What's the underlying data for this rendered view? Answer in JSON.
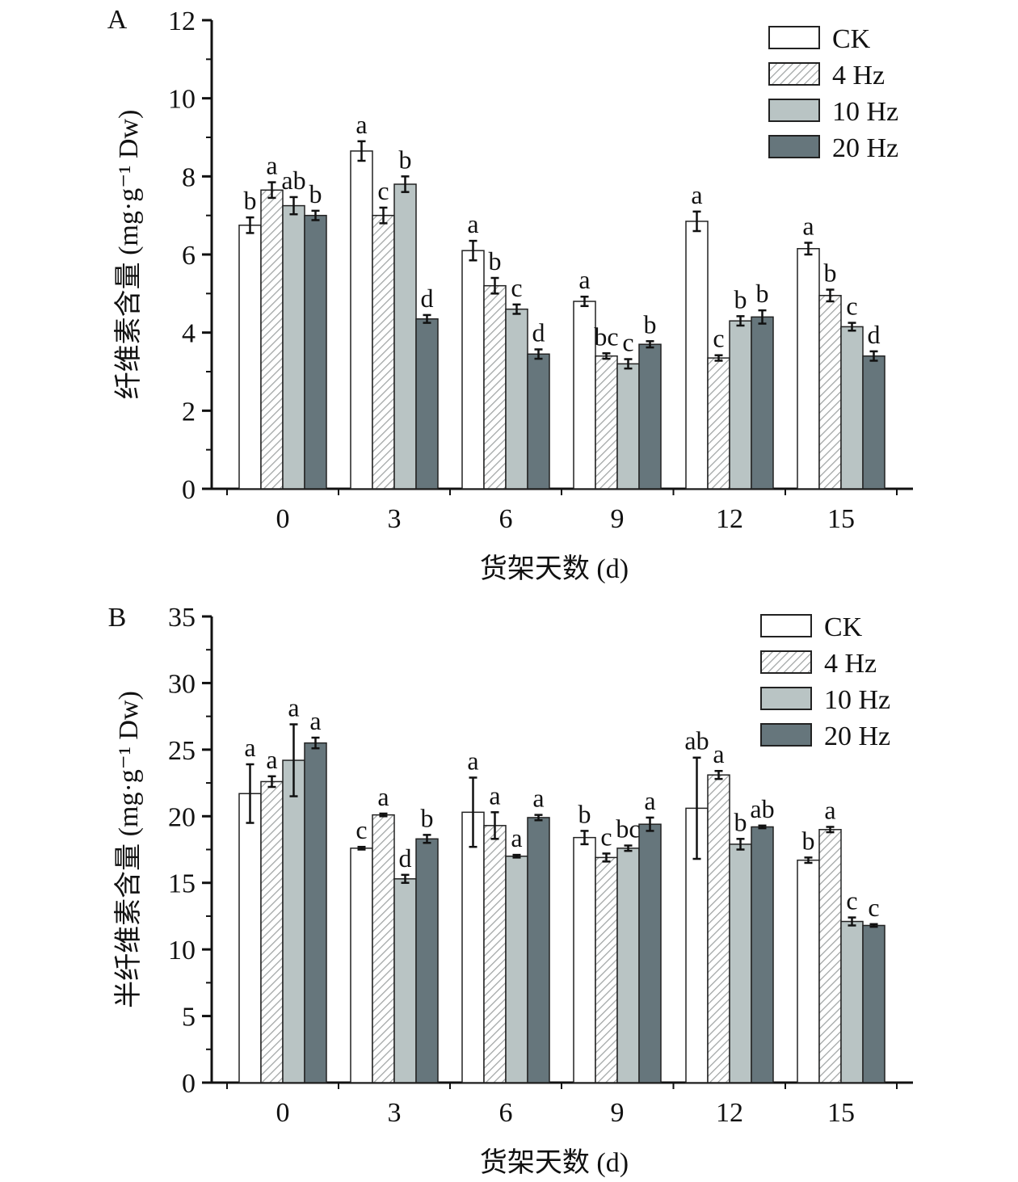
{
  "chart_data": [
    {
      "type": "bar",
      "panel": "A",
      "ylabel": "纤维素含量 (mg·g⁻¹ Dw)",
      "xlabel": "货架天数 (d)",
      "ylim": [
        0,
        12
      ],
      "yticks": [
        0,
        2,
        4,
        6,
        8,
        10,
        12
      ],
      "categories": [
        "0",
        "3",
        "6",
        "9",
        "12",
        "15"
      ],
      "legend_position": "top-right",
      "series": [
        {
          "name": "CK",
          "values": [
            6.75,
            8.65,
            6.1,
            4.8,
            6.85,
            6.15
          ],
          "errors": [
            0.2,
            0.25,
            0.25,
            0.12,
            0.25,
            0.15
          ],
          "letters": [
            "b",
            "a",
            "a",
            "a",
            "a",
            "a"
          ]
        },
        {
          "name": "4 Hz",
          "values": [
            7.65,
            7.0,
            5.2,
            3.4,
            3.35,
            4.95
          ],
          "errors": [
            0.2,
            0.2,
            0.2,
            0.07,
            0.07,
            0.15
          ],
          "letters": [
            "a",
            "c",
            "b",
            "bc",
            "c",
            "b"
          ]
        },
        {
          "name": "10 Hz",
          "values": [
            7.25,
            7.8,
            4.6,
            3.2,
            4.3,
            4.15
          ],
          "errors": [
            0.22,
            0.2,
            0.12,
            0.12,
            0.12,
            0.1
          ],
          "letters": [
            "ab",
            "b",
            "c",
            "c",
            "b",
            "c"
          ]
        },
        {
          "name": "20 Hz",
          "values": [
            7.0,
            4.35,
            3.45,
            3.7,
            4.4,
            3.4
          ],
          "errors": [
            0.12,
            0.1,
            0.12,
            0.08,
            0.17,
            0.12
          ],
          "letters": [
            "b",
            "d",
            "d",
            "b",
            "b",
            "d"
          ]
        }
      ]
    },
    {
      "type": "bar",
      "panel": "B",
      "ylabel": "半纤维素含量 (mg·g⁻¹ Dw)",
      "xlabel": "货架天数 (d)",
      "ylim": [
        0,
        35
      ],
      "yticks": [
        0,
        5,
        10,
        15,
        20,
        25,
        30,
        35
      ],
      "categories": [
        "0",
        "3",
        "6",
        "9",
        "12",
        "15"
      ],
      "legend_position": "top-right",
      "series": [
        {
          "name": "CK",
          "values": [
            21.7,
            17.6,
            20.3,
            18.4,
            20.6,
            16.7
          ],
          "errors": [
            2.2,
            0.1,
            2.6,
            0.5,
            3.8,
            0.2
          ],
          "letters": [
            "a",
            "c",
            "a",
            "b",
            "ab",
            "b"
          ]
        },
        {
          "name": "4 Hz",
          "values": [
            22.6,
            20.1,
            19.3,
            16.9,
            23.1,
            19.0
          ],
          "errors": [
            0.4,
            0.1,
            1.0,
            0.3,
            0.3,
            0.2
          ],
          "letters": [
            "a",
            "a",
            "a",
            "c",
            "a",
            "a"
          ]
        },
        {
          "name": "10 Hz",
          "values": [
            24.2,
            15.3,
            17.0,
            17.6,
            17.9,
            12.1
          ],
          "errors": [
            2.7,
            0.3,
            0.1,
            0.2,
            0.4,
            0.3
          ],
          "letters": [
            "a",
            "d",
            "a",
            "bc",
            "b",
            "c"
          ]
        },
        {
          "name": "20 Hz",
          "values": [
            25.5,
            18.3,
            19.9,
            19.4,
            19.2,
            11.8
          ],
          "errors": [
            0.4,
            0.3,
            0.2,
            0.5,
            0.1,
            0.1
          ],
          "letters": [
            "a",
            "b",
            "a",
            "a",
            "ab",
            "c"
          ]
        }
      ]
    }
  ],
  "colors": {
    "CK": "#ffffff",
    "4 Hz": "#ffffff",
    "10 Hz": "#b9c4c4",
    "20 Hz": "#66767c",
    "hatch": "#9aa0a0",
    "stroke": "#222222"
  }
}
